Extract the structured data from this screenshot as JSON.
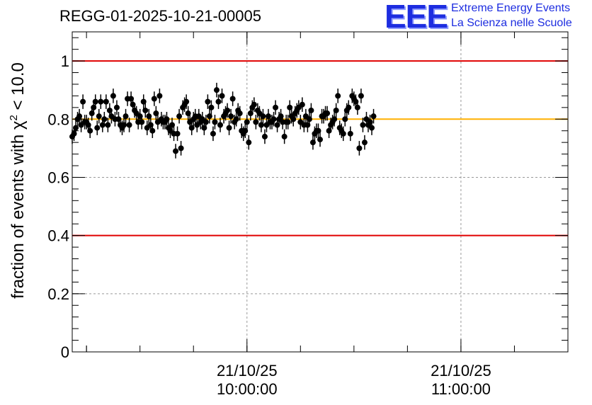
{
  "header": {
    "title": "REGG-01-2025-10-21-00005",
    "logo_mark": "EEE",
    "logo_line1": "Extreme Energy Events",
    "logo_line2": "La Scienza nelle Scuole"
  },
  "colors": {
    "threshold_line": "#e00000",
    "mean_line": "#ffb000",
    "points": "#000000",
    "logo": "#1d2de0"
  },
  "chart_data": {
    "type": "scatter",
    "title": "REGG-01-2025-10-21-00005",
    "ylabel_prefix": "fraction of events with χ",
    "ylabel_sup": "2",
    "ylabel_suffix": " < 10.0",
    "xlabel": "",
    "xlim": [
      "2025-10-21 09:11:00",
      "2025-10-21 11:30:00"
    ],
    "ylim": [
      0,
      1.1
    ],
    "yticks": [
      "0",
      "0.2",
      "0.4",
      "0.6",
      "0.8",
      "1"
    ],
    "xticks": [
      {
        "x": "2025-10-21 10:00:00",
        "label_date": "21/10/25",
        "label_time": "10:00:00"
      },
      {
        "x": "2025-10-21 11:00:00",
        "label_date": "21/10/25",
        "label_time": "11:00:00"
      }
    ],
    "grid": true,
    "reference_lines": [
      {
        "y": 1.0,
        "color": "red"
      },
      {
        "y": 0.4,
        "color": "red"
      },
      {
        "y": 0.8,
        "color": "orange"
      }
    ],
    "error_bar": 0.025,
    "x_start": "2025-10-21 09:11:00",
    "x_step_seconds": 30,
    "values": [
      0.74,
      0.75,
      0.77,
      0.8,
      0.81,
      0.78,
      0.86,
      0.79,
      0.79,
      0.78,
      0.76,
      0.82,
      0.84,
      0.86,
      0.77,
      0.81,
      0.86,
      0.78,
      0.8,
      0.86,
      0.78,
      0.83,
      0.81,
      0.88,
      0.8,
      0.84,
      0.8,
      0.78,
      0.77,
      0.78,
      0.81,
      0.87,
      0.78,
      0.87,
      0.85,
      0.83,
      0.82,
      0.79,
      0.81,
      0.79,
      0.86,
      0.83,
      0.77,
      0.81,
      0.78,
      0.76,
      0.87,
      0.82,
      0.79,
      0.88,
      0.8,
      0.79,
      0.79,
      0.8,
      0.77,
      0.76,
      0.78,
      0.75,
      0.69,
      0.75,
      0.81,
      0.7,
      0.84,
      0.85,
      0.86,
      0.82,
      0.79,
      0.77,
      0.8,
      0.81,
      0.78,
      0.81,
      0.79,
      0.8,
      0.77,
      0.79,
      0.86,
      0.81,
      0.84,
      0.75,
      0.79,
      0.9,
      0.86,
      0.78,
      0.88,
      0.81,
      0.82,
      0.83,
      0.77,
      0.81,
      0.87,
      0.79,
      0.8,
      0.83,
      0.82,
      0.76,
      0.75,
      0.76,
      0.79,
      0.72,
      0.82,
      0.84,
      0.85,
      0.79,
      0.83,
      0.82,
      0.78,
      0.81,
      0.74,
      0.78,
      0.81,
      0.79,
      0.79,
      0.8,
      0.84,
      0.78,
      0.8,
      0.81,
      0.79,
      0.74,
      0.79,
      0.79,
      0.84,
      0.81,
      0.8,
      0.82,
      0.83,
      0.84,
      0.79,
      0.85,
      0.78,
      0.81,
      0.78,
      0.8,
      0.83,
      0.72,
      0.75,
      0.76,
      0.76,
      0.73,
      0.81,
      0.81,
      0.82,
      0.82,
      0.76,
      0.78,
      0.79,
      0.8,
      0.83,
      0.88,
      0.77,
      0.76,
      0.75,
      0.8,
      0.83,
      0.84,
      0.75,
      0.88,
      0.87,
      0.86,
      0.84,
      0.7,
      0.88,
      0.78,
      0.72,
      0.8,
      0.78,
      0.79,
      0.77,
      0.81
    ]
  }
}
